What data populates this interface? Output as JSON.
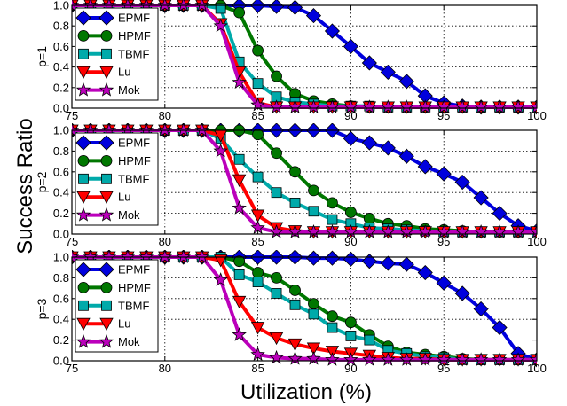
{
  "figure": {
    "ylabel": "Success Ratio",
    "xlabel": "Utilization (%)"
  },
  "chart_data": [
    {
      "type": "line",
      "ylabel": "p=1",
      "xlim": [
        75,
        100
      ],
      "ylim": [
        0,
        1
      ],
      "x_ticks": [
        "75",
        "80",
        "85",
        "90",
        "95",
        "100"
      ],
      "y_ticks": [
        "0.0",
        "0.2",
        "0.4",
        "0.6",
        "0.8",
        "1.0"
      ],
      "grid": true,
      "legend_position": "upper-left",
      "x": [
        75,
        76,
        77,
        78,
        79,
        80,
        81,
        82,
        83,
        84,
        85,
        86,
        87,
        88,
        89,
        90,
        91,
        92,
        93,
        94,
        95,
        96,
        97,
        98,
        99,
        100
      ],
      "series": [
        {
          "name": "EPMF",
          "color": "#0000dd",
          "marker": "diamond",
          "values": [
            1,
            1,
            1,
            1,
            1,
            1,
            1,
            1,
            1,
            1,
            1,
            0.99,
            0.98,
            0.9,
            0.75,
            0.6,
            0.44,
            0.35,
            0.26,
            0.12,
            0.05,
            0.02,
            0.01,
            0.01,
            0.01,
            0.01
          ]
        },
        {
          "name": "HPMF",
          "color": "#007700",
          "marker": "circle",
          "values": [
            1,
            1,
            1,
            1,
            1,
            1,
            1,
            1,
            1,
            0.93,
            0.56,
            0.31,
            0.14,
            0.07,
            0.04,
            0.02,
            0.01,
            0.01,
            0.01,
            0.01,
            0.01,
            0.01,
            0.01,
            0.01,
            0.01,
            0.01
          ]
        },
        {
          "name": "TBMF",
          "color": "#00aaaa",
          "marker": "square",
          "values": [
            1,
            1,
            1,
            1,
            1,
            1,
            1,
            1,
            0.97,
            0.45,
            0.24,
            0.11,
            0.06,
            0.04,
            0.02,
            0.02,
            0.02,
            0.01,
            0.01,
            0.01,
            0.01,
            0.01,
            0.01,
            0.01,
            0.01,
            0.01
          ]
        },
        {
          "name": "Lu",
          "color": "#ff0000",
          "marker": "triangle-down",
          "values": [
            1,
            1,
            1,
            1,
            1,
            1,
            1,
            1,
            0.82,
            0.35,
            0.05,
            0.01,
            0.01,
            0.01,
            0.01,
            0.01,
            0.01,
            0.01,
            0.01,
            0.01,
            0.01,
            0.01,
            0.01,
            0.01,
            0.01,
            0.01
          ]
        },
        {
          "name": "Mok",
          "color": "#bb00bb",
          "marker": "star",
          "values": [
            1,
            1,
            1,
            1,
            1,
            1,
            1,
            1,
            0.8,
            0.25,
            0.03,
            0.01,
            0.01,
            0.01,
            0.01,
            0.01,
            0.01,
            0.01,
            0.01,
            0.01,
            0.01,
            0.01,
            0.01,
            0.01,
            0.01,
            0.01
          ]
        }
      ]
    },
    {
      "type": "line",
      "ylabel": "p=2",
      "xlim": [
        75,
        100
      ],
      "ylim": [
        0,
        1
      ],
      "x_ticks": [
        "75",
        "80",
        "85",
        "90",
        "95",
        "100"
      ],
      "y_ticks": [
        "0.0",
        "0.2",
        "0.4",
        "0.6",
        "0.8",
        "1.0"
      ],
      "grid": true,
      "legend_position": "upper-left",
      "x": [
        75,
        76,
        77,
        78,
        79,
        80,
        81,
        82,
        83,
        84,
        85,
        86,
        87,
        88,
        89,
        90,
        91,
        92,
        93,
        94,
        95,
        96,
        97,
        98,
        99,
        100
      ],
      "series": [
        {
          "name": "EPMF",
          "color": "#0000dd",
          "marker": "diamond",
          "values": [
            1,
            1,
            1,
            1,
            1,
            1,
            1,
            1,
            1,
            1,
            1,
            1,
            1,
            1,
            1,
            0.92,
            0.88,
            0.83,
            0.75,
            0.65,
            0.58,
            0.5,
            0.35,
            0.2,
            0.08,
            0.03
          ]
        },
        {
          "name": "HPMF",
          "color": "#007700",
          "marker": "circle",
          "values": [
            1,
            1,
            1,
            1,
            1,
            1,
            1,
            1,
            1,
            1,
            0.96,
            0.78,
            0.6,
            0.42,
            0.3,
            0.21,
            0.15,
            0.1,
            0.08,
            0.05,
            0.04,
            0.03,
            0.02,
            0.02,
            0.02,
            0.02
          ]
        },
        {
          "name": "TBMF",
          "color": "#00aaaa",
          "marker": "square",
          "values": [
            1,
            1,
            1,
            1,
            1,
            1,
            1,
            1,
            0.92,
            0.72,
            0.55,
            0.4,
            0.3,
            0.22,
            0.14,
            0.1,
            0.06,
            0.05,
            0.04,
            0.03,
            0.02,
            0.02,
            0.02,
            0.02,
            0.02,
            0.02
          ]
        },
        {
          "name": "Lu",
          "color": "#ff0000",
          "marker": "triangle-down",
          "values": [
            1,
            1,
            1,
            1,
            1,
            1,
            1,
            1,
            0.95,
            0.52,
            0.18,
            0.06,
            0.03,
            0.02,
            0.02,
            0.02,
            0.02,
            0.02,
            0.02,
            0.02,
            0.02,
            0.02,
            0.02,
            0.02,
            0.02,
            0.02
          ]
        },
        {
          "name": "Mok",
          "color": "#bb00bb",
          "marker": "star",
          "values": [
            1,
            1,
            1,
            1,
            1,
            1,
            1,
            1,
            0.8,
            0.25,
            0.06,
            0.02,
            0.02,
            0.02,
            0.02,
            0.02,
            0.02,
            0.02,
            0.02,
            0.02,
            0.02,
            0.02,
            0.02,
            0.02,
            0.02,
            0.02
          ]
        }
      ]
    },
    {
      "type": "line",
      "ylabel": "p=3",
      "xlim": [
        75,
        100
      ],
      "ylim": [
        0,
        1
      ],
      "x_ticks": [
        "75",
        "80",
        "85",
        "90",
        "95",
        "100"
      ],
      "y_ticks": [
        "0.0",
        "0.2",
        "0.4",
        "0.6",
        "0.8",
        "1.0"
      ],
      "grid": true,
      "legend_position": "upper-left",
      "x": [
        75,
        76,
        77,
        78,
        79,
        80,
        81,
        82,
        83,
        84,
        85,
        86,
        87,
        88,
        89,
        90,
        91,
        92,
        93,
        94,
        95,
        96,
        97,
        98,
        99,
        100
      ],
      "series": [
        {
          "name": "EPMF",
          "color": "#0000dd",
          "marker": "diamond",
          "values": [
            1,
            1,
            1,
            1,
            1,
            1,
            1,
            1,
            1,
            1,
            1,
            1,
            1,
            0.99,
            0.99,
            0.98,
            0.96,
            0.94,
            0.93,
            0.85,
            0.75,
            0.65,
            0.5,
            0.32,
            0.07,
            0.01
          ]
        },
        {
          "name": "HPMF",
          "color": "#007700",
          "marker": "circle",
          "values": [
            1,
            1,
            1,
            1,
            1,
            1,
            1,
            1,
            1,
            0.96,
            0.85,
            0.8,
            0.68,
            0.55,
            0.43,
            0.37,
            0.25,
            0.14,
            0.08,
            0.06,
            0.04,
            0.02,
            0.01,
            0.01,
            0.01,
            0.01
          ]
        },
        {
          "name": "TBMF",
          "color": "#00aaaa",
          "marker": "square",
          "values": [
            1,
            1,
            1,
            1,
            1,
            1,
            1,
            1,
            1,
            0.83,
            0.76,
            0.65,
            0.54,
            0.45,
            0.32,
            0.24,
            0.2,
            0.1,
            0.07,
            0.04,
            0.03,
            0.01,
            0.01,
            0.01,
            0.01,
            0.01
          ]
        },
        {
          "name": "Lu",
          "color": "#ff0000",
          "marker": "triangle-down",
          "values": [
            1,
            1,
            1,
            1,
            1,
            1,
            1,
            1,
            0.97,
            0.57,
            0.32,
            0.22,
            0.16,
            0.12,
            0.09,
            0.07,
            0.05,
            0.03,
            0.02,
            0.02,
            0.01,
            0.01,
            0.01,
            0.01,
            0.01,
            0.01
          ]
        },
        {
          "name": "Mok",
          "color": "#bb00bb",
          "marker": "star",
          "values": [
            1,
            1,
            1,
            1,
            1,
            1,
            1,
            1,
            0.78,
            0.25,
            0.06,
            0.03,
            0.02,
            0.02,
            0.01,
            0.01,
            0.01,
            0.01,
            0.01,
            0.01,
            0.01,
            0.01,
            0.01,
            0.01,
            0.01,
            0.01
          ]
        }
      ]
    }
  ]
}
